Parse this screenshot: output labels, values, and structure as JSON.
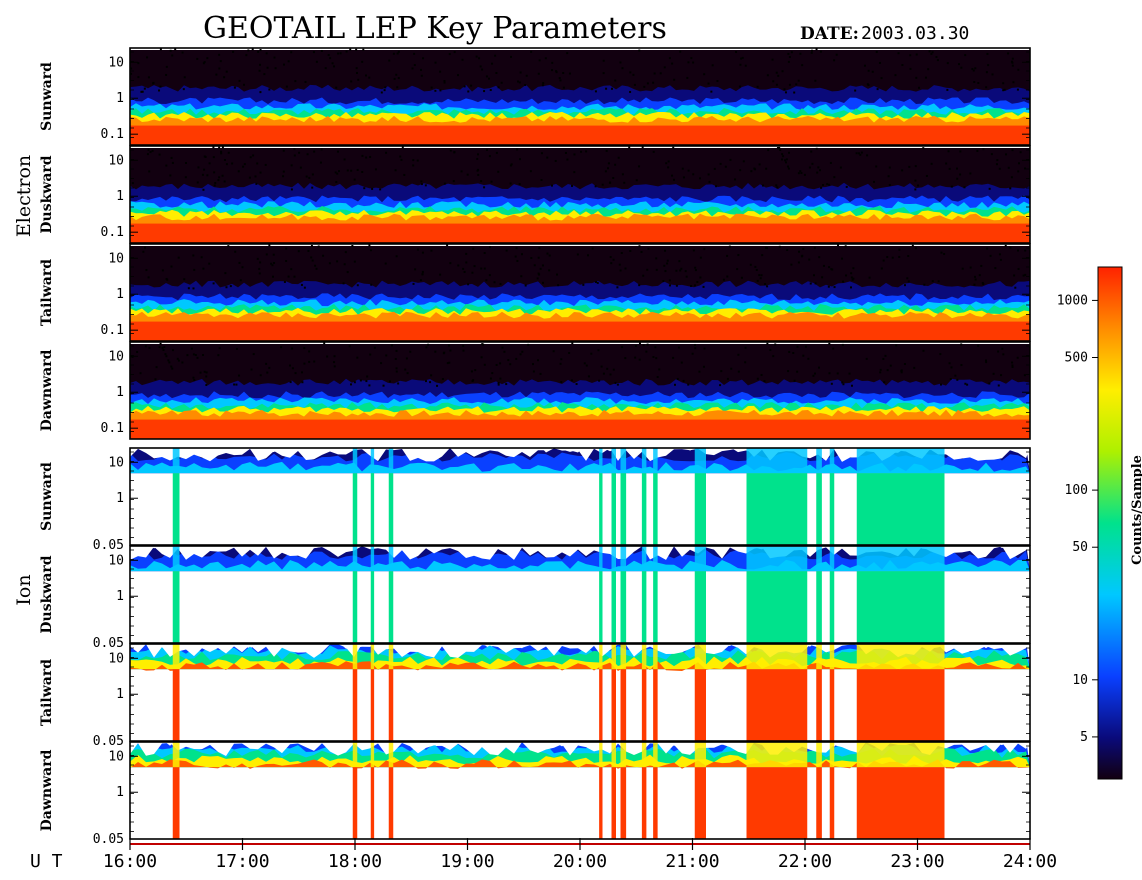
{
  "title": "GEOTAIL LEP Key Parameters",
  "date_label": "DATE:",
  "date_value": "2003.03.30",
  "colorbar": {
    "label": "Counts/Sample",
    "ticks": [
      "1000",
      "500",
      "100",
      "50",
      "10",
      "5"
    ],
    "tick_values": [
      1000,
      500,
      100,
      50,
      10,
      5
    ],
    "range": [
      3,
      1500
    ],
    "scale": "log"
  },
  "chart_data": {
    "type": "heatmap",
    "x_axis": {
      "label": "U T",
      "ticks": [
        "16:00",
        "17:00",
        "18:00",
        "19:00",
        "20:00",
        "21:00",
        "22:00",
        "23:00",
        "24:00"
      ],
      "range_hours": [
        16,
        24
      ]
    },
    "groups": [
      {
        "name": "Electron",
        "panels": [
          "Sunward",
          "Duskward",
          "Tailward",
          "Dawnward"
        ]
      },
      {
        "name": "Ion",
        "panels": [
          "Sunward",
          "Duskward",
          "Tailward",
          "Dawnward"
        ]
      }
    ],
    "electron_y": {
      "scale": "log",
      "ticks": [
        "10",
        "1",
        "0.1"
      ],
      "tick_values": [
        10,
        1,
        0.1
      ],
      "range": [
        0.05,
        25
      ]
    },
    "ion_y": {
      "scale": "log",
      "ticks": [
        "10",
        "1",
        "0.05"
      ],
      "tick_values": [
        10,
        1,
        0.05
      ],
      "range": [
        0.05,
        25
      ]
    },
    "ion_data_gaps_hours": [
      [
        16.38,
        16.44
      ],
      [
        17.98,
        18.02
      ],
      [
        18.14,
        18.17
      ],
      [
        18.3,
        18.34
      ],
      [
        20.17,
        20.2
      ],
      [
        20.28,
        20.32
      ],
      [
        20.36,
        20.41
      ],
      [
        20.55,
        20.59
      ],
      [
        20.65,
        20.69
      ],
      [
        21.02,
        21.12
      ],
      [
        21.48,
        22.02
      ],
      [
        22.1,
        22.15
      ],
      [
        22.22,
        22.26
      ],
      [
        22.46,
        23.24
      ]
    ]
  },
  "colors": {
    "frame": "#000000",
    "background": "#ffffff"
  }
}
